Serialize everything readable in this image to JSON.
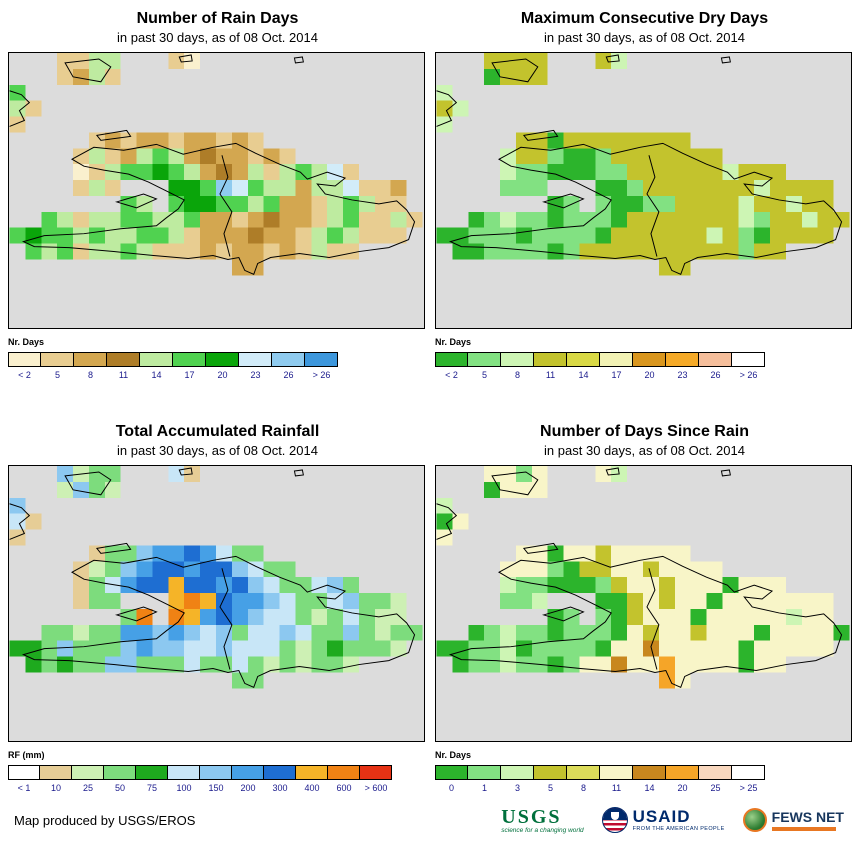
{
  "panels": [
    {
      "id": "rain-days",
      "title": "Number of Rain Days",
      "subtitle": "in past 30 days, as of 08 Oct. 2014",
      "legend_label": "Nr. Days",
      "swatch_width": 33,
      "legend": [
        {
          "label": "< 2",
          "color": "#FAF0CE"
        },
        {
          "label": "5",
          "color": "#E8CD91"
        },
        {
          "label": "8",
          "color": "#D3A750"
        },
        {
          "label": "11",
          "color": "#AE7D28"
        },
        {
          "label": "14",
          "color": "#BEEBA0"
        },
        {
          "label": "17",
          "color": "#50D250"
        },
        {
          "label": "20",
          "color": "#0AA50A"
        },
        {
          "label": "23",
          "color": "#D2ECF9"
        },
        {
          "label": "26",
          "color": "#8FCBEF"
        },
        {
          "label": "> 26",
          "color": "#3D97DC"
        }
      ],
      "raster": [
        "...1144...10",
        "...1241",
        "5",
        "41",
        "1",
        ".....12122122121",
        "....14124542322121",
        "....014556542324145471",
        "....141...665875442447112",
        ".......54.566554522145411",
        "..541445544522123221451141",
        "5655454455412223221454111",
        ".545144541112122121411",
        "..............22"
      ]
    },
    {
      "id": "max-consecutive-dry-days",
      "title": "Maximum Consecutive Dry Days",
      "subtitle": "in past 30 days, as of 08 Oct. 2014",
      "legend_label": "Nr. Days",
      "swatch_width": 33,
      "legend": [
        {
          "label": "< 2",
          "color": "#2CB42C"
        },
        {
          "label": "5",
          "color": "#82E182"
        },
        {
          "label": "8",
          "color": "#CDF5B4"
        },
        {
          "label": "11",
          "color": "#C3C32D"
        },
        {
          "label": "14",
          "color": "#D9D945"
        },
        {
          "label": "17",
          "color": "#F2F2B4"
        },
        {
          "label": "20",
          "color": "#D9961E"
        },
        {
          "label": "23",
          "color": "#F5AA28"
        },
        {
          "label": "26",
          "color": "#F5BE9B"
        },
        {
          "label": "> 26",
          "color": "#FFFFFF"
        }
      ],
      "raster": [
        "...3333...32",
        "...0333",
        "2",
        "32",
        "2",
        ".....33033333333",
        "....23310013333333",
        "....211000113333332333",
        "....111...001333333323333",
        ".......01.100113333233233",
        "..012110111033333332133233",
        "0011101111033333323103333",
        ".001111013333333333133",
        "..............33"
      ]
    },
    {
      "id": "total-accumulated-rainfall",
      "title": "Total Accumulated Rainfall",
      "subtitle": "in past 30 days, as of 08 Oct. 2014",
      "legend_label": "RF (mm)",
      "swatch_width": 32,
      "legend": [
        {
          "label": "< 1",
          "color": "#FFFFFF"
        },
        {
          "label": "10",
          "color": "#E6CD96"
        },
        {
          "label": "25",
          "color": "#CDF0B4"
        },
        {
          "label": "50",
          "color": "#7DDC7D"
        },
        {
          "label": "75",
          "color": "#1EAA1E"
        },
        {
          "label": "100",
          "color": "#C8E6F7"
        },
        {
          "label": "150",
          "color": "#8CC8F0"
        },
        {
          "label": "200",
          "color": "#46A0E6"
        },
        {
          "label": "300",
          "color": "#1E6ED2"
        },
        {
          "label": "400",
          "color": "#F5B428"
        },
        {
          "label": "600",
          "color": "#F08214"
        },
        {
          "label": "> 600",
          "color": "#E63214"
        }
      ],
      "raster": [
        "...6233...51",
        "...2632",
        "6",
        "51",
        "1",
        ".....13367787533",
        "....12367887886533",
        "....135788988786533563",
        "....133...9A9877653356332",
        ".......3A.A97876553235322",
        "..332337767656355653363233",
        "4436333676655655532343332",
        ".434336633353353232332",
        "..............33"
      ]
    },
    {
      "id": "days-since-rain",
      "title": "Number of Days Since Rain",
      "subtitle": "in past 30 days, as of 08 Oct. 2014",
      "legend_label": "Nr. Days",
      "swatch_width": 33,
      "legend": [
        {
          "label": "0",
          "color": "#2CB42C"
        },
        {
          "label": "1",
          "color": "#82E182"
        },
        {
          "label": "3",
          "color": "#CDF5B4"
        },
        {
          "label": "5",
          "color": "#C3C32D"
        },
        {
          "label": "8",
          "color": "#DCDC5A"
        },
        {
          "label": "11",
          "color": "#F8F5C8"
        },
        {
          "label": "14",
          "color": "#C8871E"
        },
        {
          "label": "20",
          "color": "#F5A528"
        },
        {
          "label": "25",
          "color": "#F8D7BE"
        },
        {
          "label": "> 25",
          "color": "#FFFFFF"
        }
      ],
      "raster": [
        "...5515...52",
        "...0555",
        "2",
        "05",
        "5",
        ".....55055355555",
        "....55510335535555",
        "....211000135535550555",
        "....112...003535505555555",
        ".......01.103555055555255",
        "..012110111053553555055550",
        "0011201111055655555055555",
        ".011211015565575555055",
        "..............75"
      ]
    }
  ],
  "map": {
    "background": "#DCDCDC",
    "cell_size": 16,
    "coast_color": "#000000",
    "coast_paths": [
      "M63,107 L85,95 L115,98 L148,92 L175,102 L205,95 L228,91 L248,101 L272,112 L293,120 L300,127 L320,120 L338,126 L328,134 L310,132 L318,142 L345,148 L372,152 L390,149 L400,158 L408,170 L402,188 L382,196 L352,200 L322,206 L292,202 L263,206 L250,212 L246,223 L237,219 L231,206 L220,208 L205,204 L180,207 L145,204 L105,200 L60,196 L25,195 L14,190 L35,184 L75,182 L112,177 L148,174 L158,166 L170,157 L176,148 L160,140 L140,130 L120,122 L95,118 L75,114 Z",
      "M108,150 L135,142 L148,147 L128,156 Z",
      "M88,83 L118,78 L122,84 L92,88 Z",
      "M56,10 L90,6 L102,14 L92,29 L64,24 Z",
      "M171,4 L183,2 L184,8 L173,9 Z",
      "M287,5 L295,4 L296,9 L288,10 Z",
      "M0,38 L12,42 L20,50 L10,58 L15,68 L0,74",
      "M214,103 L220,125 L212,142 L224,160 L216,182 L222,205"
    ]
  },
  "footer": {
    "credit": "Map produced by USGS/EROS",
    "logos": {
      "usgs": {
        "text": "USGS",
        "tagline": "science for a changing world"
      },
      "usaid": {
        "text": "USAID",
        "tagline": "FROM THE AMERICAN PEOPLE"
      },
      "fewsnet": {
        "text": "FEWS NET"
      }
    }
  }
}
